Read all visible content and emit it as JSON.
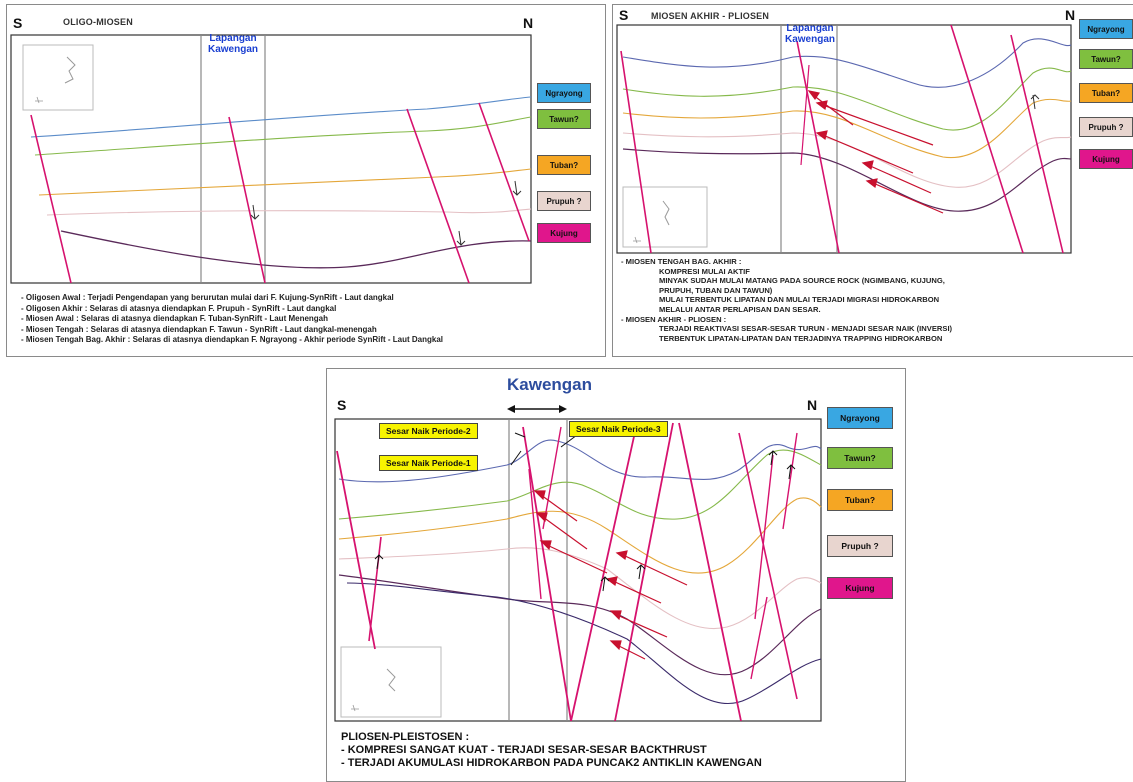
{
  "panel1": {
    "title": "OLIGO-MIOSEN",
    "south": "S",
    "north": "N",
    "field_line1": "Lapangan",
    "field_line2": "Kawengan",
    "legend": [
      "Ngrayong",
      "Tawun?",
      "Tuban?",
      "Prupuh ?",
      "Kujung"
    ],
    "notes": [
      "- Oligosen Awal   : Terjadi Pengendapan yang berurutan mulai dari F. Kujung-SynRift - Laut dangkal",
      "- Oligosen Akhir : Selaras di atasnya diendapkan F. Prupuh - SynRift - Laut dangkal",
      "- Miosen Awal     : Selaras di atasnya diendapkan F. Tuban-SynRift - Laut Menengah",
      "- Miosen Tengah : Selaras di atasnya diendapkan F. Tawun - SynRift - Laut dangkal-menengah",
      "- Miosen Tengah Bag. Akhir : Selaras di atasnya diendapkan F. Ngrayong - Akhir periode SynRift - Laut Dangkal"
    ]
  },
  "panel2": {
    "title": "MIOSEN AKHIR - PLIOSEN",
    "south": "S",
    "north": "N",
    "field_line1": "Lapangan",
    "field_line2": "Kawengan",
    "legend": [
      "Ngrayong",
      "Tawun?",
      "Tuban?",
      "Prupuh ?",
      "Kujung"
    ],
    "notes": {
      "h1": "- MIOSEN TENGAH BAG. AKHIR :",
      "l1": "KOMPRESI MULAI AKTIF",
      "l2": "MINYAK SUDAH MULAI MATANG PADA SOURCE ROCK (NGIMBANG, KUJUNG,",
      "l3": "PRUPUH, TUBAN DAN TAWUN)",
      "l4": "MULAI TERBENTUK LIPATAN DAN MULAI TERJADI MIGRASI HIDROKARBON",
      "l5": "MELALUI ANTAR PERLAPISAN DAN SESAR.",
      "h2": "- MIOSEN AKHIR - PLIOSEN :",
      "l6": "TERJADI REAKTIVASI SESAR-SESAR TURUN - MENJADI SESAR NAIK (INVERSI)",
      "l7": "TERBENTUK LIPATAN-LIPATAN DAN TERJADINYA TRAPPING HIDROKARBON"
    }
  },
  "panel3": {
    "title": "Kawengan",
    "south": "S",
    "north": "N",
    "labels": {
      "p2": "Sesar Naik Periode-2",
      "p1": "Sesar Naik Periode-1",
      "p3": "Sesar Naik Periode-3"
    },
    "legend": [
      "Ngrayong",
      "Tawun?",
      "Tuban?",
      "Prupuh ?",
      "Kujung"
    ],
    "notes": [
      "PLIOSEN-PLEISTOSEN :",
      "- KOMPRESI SANGAT KUAT - TERJADI SESAR-SESAR BACKTHRUST",
      "- TERJADI AKUMULASI HIDROKARBON PADA PUNCAK2 ANTIKLIN KAWENGAN"
    ]
  },
  "colors": {
    "ngrayong": "#39a7e2",
    "tawun": "#7fbf3f",
    "tuban": "#f5a623",
    "prupuh": "#e8d5cf",
    "kujung": "#e0168c",
    "fault": "#d6126e",
    "arrow": "#c8102e"
  }
}
